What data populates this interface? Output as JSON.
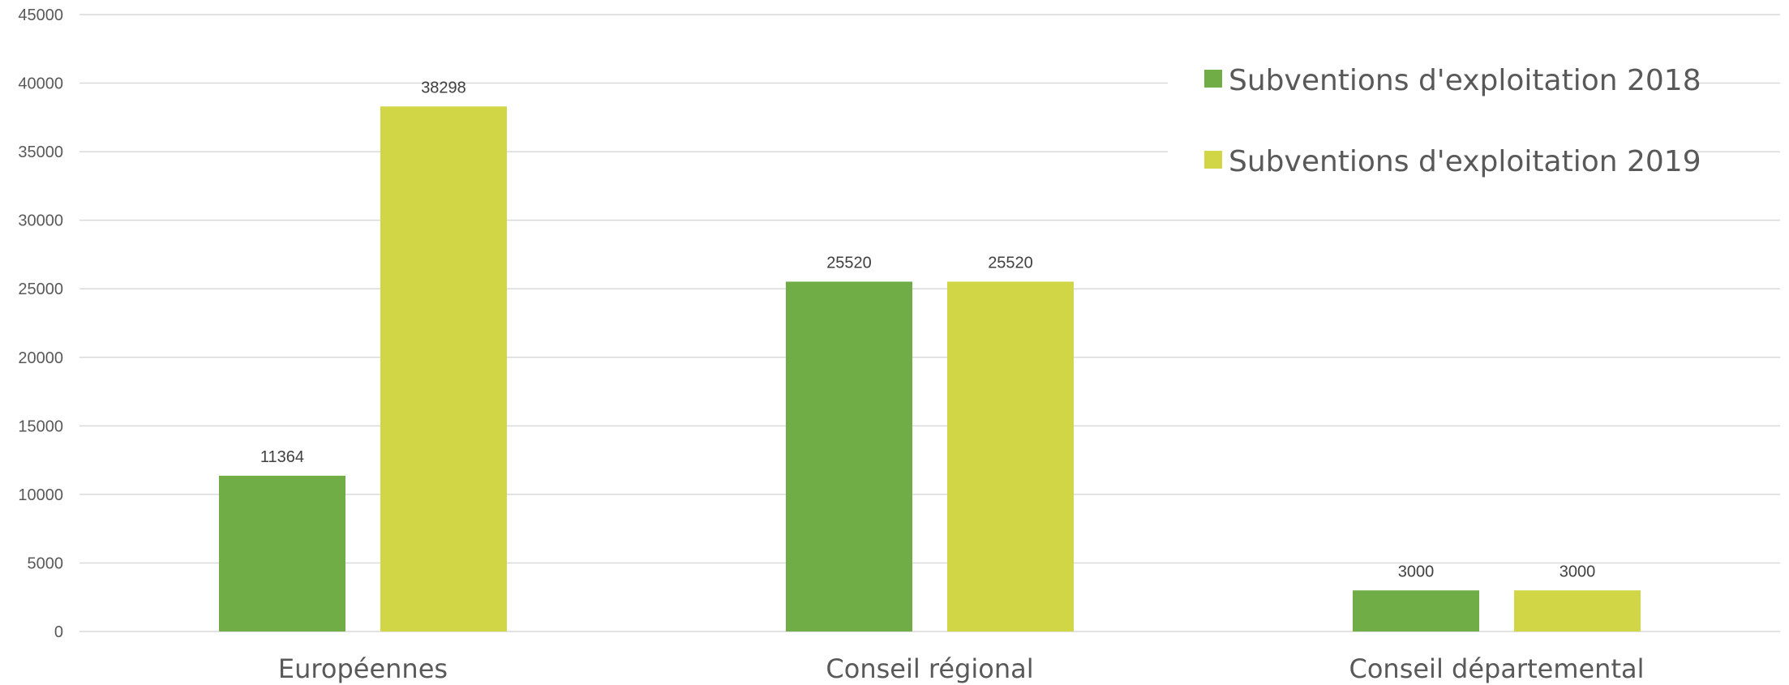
{
  "chart_data": {
    "type": "bar",
    "title": "",
    "xlabel": "",
    "ylabel": "",
    "categories": [
      "Européennes",
      "Conseil régional",
      "Conseil départemental"
    ],
    "series": [
      {
        "name": "Subventions d'exploitation 2018",
        "values": [
          11364,
          25520,
          3000
        ],
        "color": "#70ad47"
      },
      {
        "name": "Subventions d'exploitation 2019",
        "values": [
          38298,
          25520,
          3000
        ],
        "color": "#d0d645"
      }
    ],
    "ylim": [
      0,
      45000
    ],
    "yticks": [
      0,
      5000,
      10000,
      15000,
      20000,
      25000,
      30000,
      35000,
      40000,
      45000
    ],
    "grid": true,
    "gridline_color": "#d9d9d9",
    "legend_position": "top-right"
  }
}
